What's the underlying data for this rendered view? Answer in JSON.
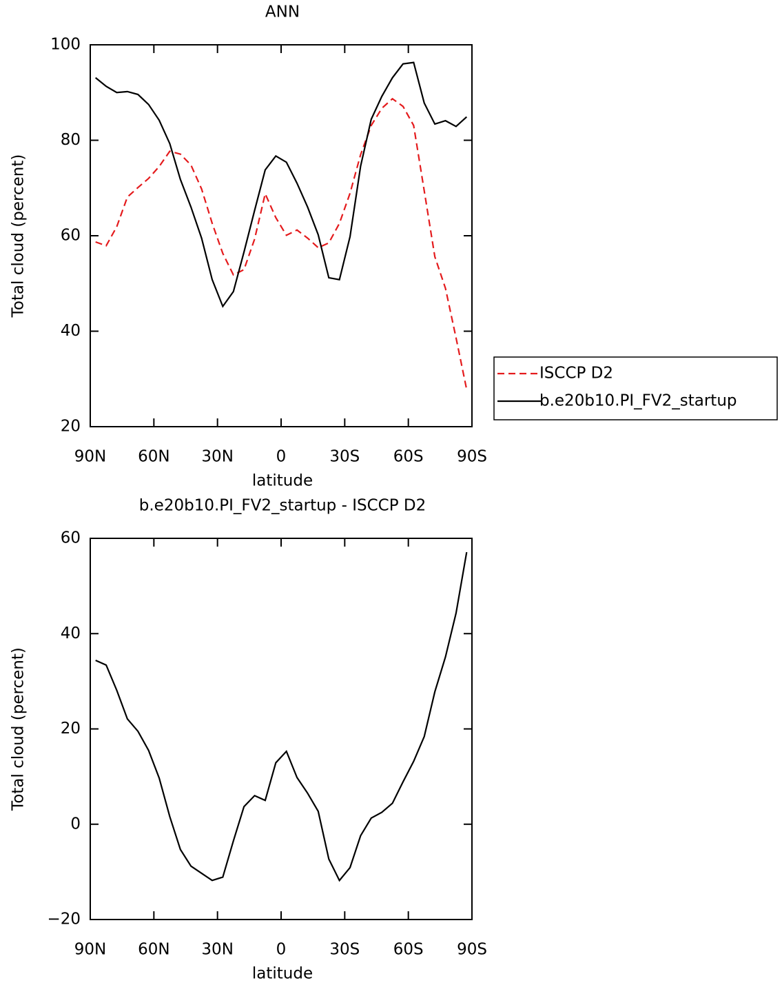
{
  "chart_data": [
    {
      "type": "line",
      "title": "ANN",
      "xlabel": "latitude",
      "ylabel": "Total cloud (percent)",
      "x": [
        87.5,
        82.5,
        77.5,
        72.5,
        67.5,
        62.5,
        57.5,
        52.5,
        47.5,
        42.5,
        37.5,
        32.5,
        27.5,
        22.5,
        17.5,
        12.5,
        7.5,
        2.5,
        -2.5,
        -7.5,
        -12.5,
        -17.5,
        -22.5,
        -27.5,
        -32.5,
        -37.5,
        -42.5,
        -47.5,
        -52.5,
        -57.5,
        -62.5,
        -67.5,
        -72.5,
        -77.5,
        -82.5,
        -87.5
      ],
      "series": [
        {
          "name": "ISCCP D2",
          "color": "#e41a1c",
          "dash": "dashed",
          "values": [
            58.7,
            57.9,
            61.9,
            68.1,
            70.1,
            72.0,
            74.5,
            77.7,
            77.1,
            74.8,
            69.8,
            62.6,
            56.3,
            51.8,
            52.9,
            59.3,
            68.8,
            63.8,
            60.1,
            61.2,
            59.5,
            57.5,
            58.5,
            62.6,
            68.9,
            77.0,
            83.1,
            86.7,
            88.7,
            87.1,
            83.1,
            69.4,
            55.6,
            49.0,
            38.6,
            27.8
          ]
        },
        {
          "name": "b.e20b10.PI_FV2_startup",
          "color": "#000000",
          "dash": "solid",
          "values": [
            93.1,
            91.3,
            90.0,
            90.2,
            89.6,
            87.5,
            84.2,
            79.3,
            71.8,
            66.0,
            59.5,
            50.8,
            45.2,
            48.3,
            56.6,
            65.3,
            73.8,
            76.7,
            75.4,
            71.0,
            66.0,
            60.2,
            51.2,
            50.8,
            59.8,
            74.6,
            84.4,
            89.2,
            93.1,
            96.0,
            96.3,
            87.8,
            83.4,
            84.1,
            82.9,
            84.9
          ]
        }
      ],
      "xlim": [
        90,
        -90
      ],
      "ylim": [
        20,
        100
      ],
      "xticks": [
        {
          "value": 90,
          "label": "90N"
        },
        {
          "value": 60,
          "label": "60N"
        },
        {
          "value": 30,
          "label": "30N"
        },
        0,
        {
          "value": -30,
          "label": "30S"
        },
        {
          "value": -60,
          "label": "60S"
        },
        {
          "value": -90,
          "label": "90S"
        }
      ],
      "yticks": [
        20,
        40,
        60,
        80,
        100
      ],
      "legend": "outside-right"
    },
    {
      "type": "line",
      "title": "b.e20b10.PI_FV2_startup - ISCCP D2",
      "xlabel": "latitude",
      "ylabel": "Total cloud (percent)",
      "x": [
        87.5,
        82.5,
        77.5,
        72.5,
        67.5,
        62.5,
        57.5,
        52.5,
        47.5,
        42.5,
        37.5,
        32.5,
        27.5,
        22.5,
        17.5,
        12.5,
        7.5,
        2.5,
        -2.5,
        -7.5,
        -12.5,
        -17.5,
        -22.5,
        -27.5,
        -32.5,
        -37.5,
        -42.5,
        -47.5,
        -52.5,
        -57.5,
        -62.5,
        -67.5,
        -72.5,
        -77.5,
        -82.5,
        -87.5
      ],
      "series": [
        {
          "color": "#000000",
          "dash": "solid",
          "values": [
            34.4,
            33.4,
            28.1,
            22.1,
            19.5,
            15.5,
            9.7,
            1.6,
            -5.3,
            -8.8,
            -10.3,
            -11.8,
            -11.1,
            -3.5,
            3.7,
            6.0,
            5.0,
            12.9,
            15.3,
            9.8,
            6.5,
            2.7,
            -7.3,
            -11.8,
            -9.1,
            -2.4,
            1.3,
            2.5,
            4.4,
            8.9,
            13.2,
            18.4,
            27.8,
            35.1,
            44.3,
            57.1
          ]
        }
      ],
      "xlim": [
        90,
        -90
      ],
      "ylim": [
        -20,
        60
      ],
      "xticks": [
        {
          "value": 90,
          "label": "90N"
        },
        {
          "value": 60,
          "label": "60N"
        },
        {
          "value": 30,
          "label": "30N"
        },
        0,
        {
          "value": -30,
          "label": "30S"
        },
        {
          "value": -60,
          "label": "60S"
        },
        {
          "value": -90,
          "label": "90S"
        }
      ],
      "yticks": [
        {
          "value": -20,
          "label": "−20"
        },
        0,
        20,
        40,
        60
      ]
    }
  ]
}
